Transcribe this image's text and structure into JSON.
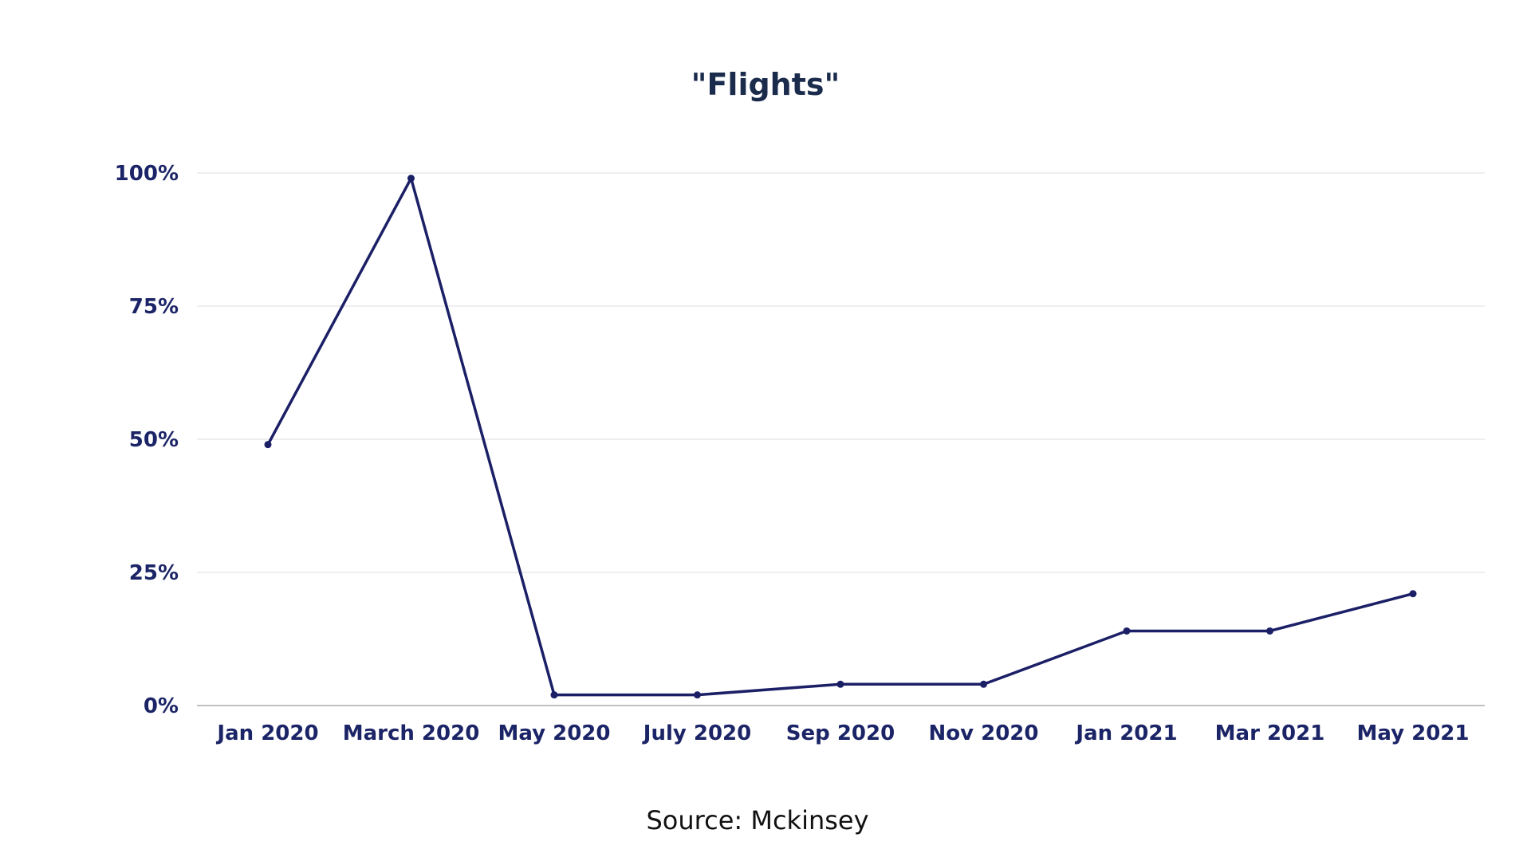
{
  "chart_data": {
    "type": "line",
    "title": "\"Flights\"",
    "xlabel": "",
    "ylabel": "",
    "categories": [
      "Jan 2020",
      "March 2020",
      "May 2020",
      "July 2020",
      "Sep 2020",
      "Nov 2020",
      "Jan 2021",
      "Mar 2021",
      "May 2021"
    ],
    "series": [
      {
        "values": [
          49,
          99,
          2,
          2,
          4,
          4,
          14,
          14,
          21
        ],
        "color": "#1b1f66"
      }
    ],
    "ylim": [
      0,
      100
    ],
    "yticks": [
      0,
      25,
      50,
      75,
      100
    ],
    "ytick_labels": [
      "0%",
      "25%",
      "50%",
      "75%",
      "100%"
    ],
    "grid": true,
    "legend": "none"
  },
  "source_note": "Source: Mckinsey",
  "colors": {
    "line": "#1b1f66",
    "tick_text": "#1b2466",
    "title_text": "#1a2b4c",
    "grid": "#dddddd",
    "axis": "#aaaaaa"
  }
}
